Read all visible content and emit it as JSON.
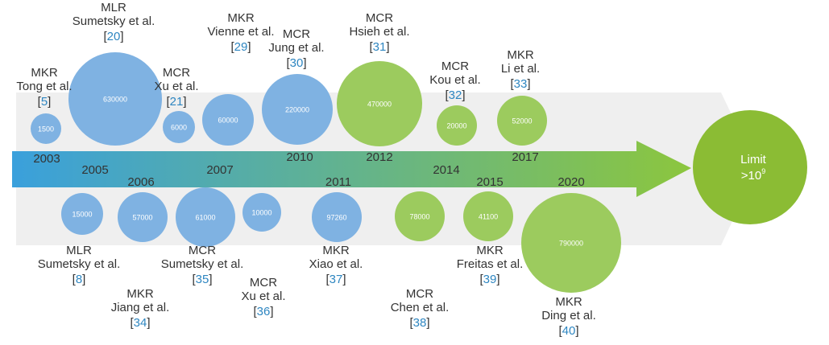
{
  "colors": {
    "blue": "#7fb2e2",
    "green": "#9ccb5e",
    "green_dark": "#8bbc34",
    "arrow_start": "#3aa0dc",
    "arrow_end": "#8cc63e",
    "band": "#eeeeee",
    "ref_color": "#2e86c1",
    "text": "#333333"
  },
  "limit": {
    "label": "Limit",
    "value_prefix": ">10",
    "exponent": "9"
  },
  "years": [
    "2003",
    "2005",
    "2006",
    "2007",
    "2010",
    "2011",
    "2012",
    "2014",
    "2015",
    "2017",
    "2020"
  ],
  "top_entries": [
    {
      "type": "MKR",
      "author": "Tong et al.",
      "ref": "5",
      "value": "1500",
      "color": "blue"
    },
    {
      "type": "MLR",
      "author": "Sumetsky et al.",
      "ref": "20",
      "value": "630000",
      "color": "blue"
    },
    {
      "type": "MCR",
      "author": "Xu et al.",
      "ref": "21",
      "value": "6000",
      "color": "blue"
    },
    {
      "type": "MKR",
      "author": "Vienne et al.",
      "ref": "29",
      "value": "60000",
      "color": "blue"
    },
    {
      "type": "MCR",
      "author": "Jung et al.",
      "ref": "30",
      "value": "220000",
      "color": "blue"
    },
    {
      "type": "MCR",
      "author": "Hsieh et al.",
      "ref": "31",
      "value": "470000",
      "color": "green"
    },
    {
      "type": "MCR",
      "author": "Kou et al.",
      "ref": "32",
      "value": "20000",
      "color": "green"
    },
    {
      "type": "MKR",
      "author": "Li et al.",
      "ref": "33",
      "value": "52000",
      "color": "green"
    }
  ],
  "bottom_entries": [
    {
      "type": "MLR",
      "author": "Sumetsky et al.",
      "ref": "8",
      "value": "15000",
      "color": "blue"
    },
    {
      "type": "MKR",
      "author": "Jiang et al.",
      "ref": "34",
      "value": "57000",
      "color": "blue"
    },
    {
      "type": "MCR",
      "author": "Sumetsky et al.",
      "ref": "35",
      "value": "61000",
      "color": "blue"
    },
    {
      "type": "MCR",
      "author": "Xu et al.",
      "ref": "36",
      "value": "10000",
      "color": "blue"
    },
    {
      "type": "MKR",
      "author": "Xiao et al.",
      "ref": "37",
      "value": "97260",
      "color": "blue"
    },
    {
      "type": "MCR",
      "author": "Chen et al.",
      "ref": "38",
      "value": "78000",
      "color": "green"
    },
    {
      "type": "MKR",
      "author": "Freitas et al.",
      "ref": "39",
      "value": "41100",
      "color": "green"
    },
    {
      "type": "MKR",
      "author": "Ding et al.",
      "ref": "40",
      "value": "790000",
      "color": "green"
    }
  ]
}
